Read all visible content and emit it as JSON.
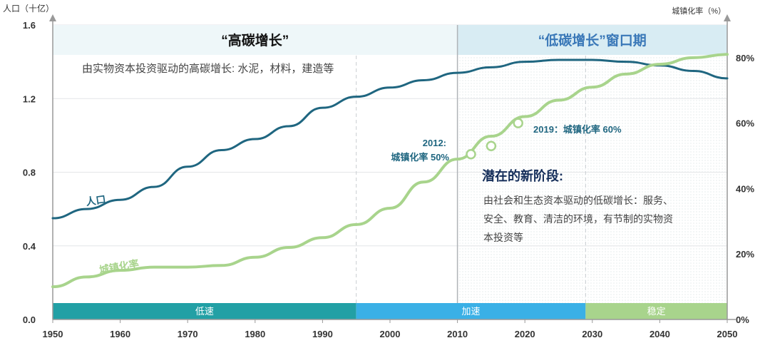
{
  "chart_data": {
    "type": "line",
    "y_left_label": "人口（十亿）",
    "y_right_label": "城镇化率（%）",
    "x_ticks": [
      "1950",
      "1960",
      "1970",
      "1980",
      "1990",
      "2000",
      "2010",
      "2020",
      "2030",
      "2040",
      "2050"
    ],
    "y_left_ticks": [
      {
        "value": 1.6,
        "label": "1.6"
      },
      {
        "value": 1.2,
        "label": "1.2"
      },
      {
        "value": 0.8,
        "label": "0.8"
      },
      {
        "value": 0.4,
        "label": "0.4"
      },
      {
        "value": 0.0,
        "label": "0.0"
      }
    ],
    "y_right_ticks": [
      {
        "value": 80,
        "label": "80%"
      },
      {
        "value": 60,
        "label": "60%"
      },
      {
        "value": 40,
        "label": "40%"
      },
      {
        "value": 20,
        "label": "20%"
      },
      {
        "value": 0,
        "label": "0%"
      }
    ],
    "xlim": [
      1950,
      2050
    ],
    "ylim_left": [
      0,
      1.6
    ],
    "ylim_right": [
      0,
      90
    ],
    "series": [
      {
        "name": "人口",
        "axis": "left",
        "color": "#1f6680",
        "points": [
          [
            1950,
            0.55
          ],
          [
            1955,
            0.6
          ],
          [
            1960,
            0.65
          ],
          [
            1965,
            0.72
          ],
          [
            1970,
            0.83
          ],
          [
            1975,
            0.92
          ],
          [
            1980,
            0.98
          ],
          [
            1985,
            1.05
          ],
          [
            1990,
            1.15
          ],
          [
            1995,
            1.21
          ],
          [
            2000,
            1.26
          ],
          [
            2005,
            1.3
          ],
          [
            2010,
            1.34
          ],
          [
            2015,
            1.37
          ],
          [
            2020,
            1.4
          ],
          [
            2025,
            1.41
          ],
          [
            2030,
            1.41
          ],
          [
            2035,
            1.4
          ],
          [
            2040,
            1.38
          ],
          [
            2045,
            1.35
          ],
          [
            2050,
            1.31
          ]
        ]
      },
      {
        "name": "城镇化率",
        "axis": "right",
        "color": "#a8d48c",
        "points": [
          [
            1950,
            10
          ],
          [
            1955,
            13
          ],
          [
            1960,
            15
          ],
          [
            1965,
            16
          ],
          [
            1970,
            16
          ],
          [
            1975,
            16.5
          ],
          [
            1980,
            19
          ],
          [
            1985,
            22
          ],
          [
            1990,
            25
          ],
          [
            1995,
            29
          ],
          [
            2000,
            34
          ],
          [
            2005,
            42
          ],
          [
            2010,
            49
          ],
          [
            2015,
            56
          ],
          [
            2020,
            62
          ],
          [
            2025,
            67
          ],
          [
            2030,
            71
          ],
          [
            2035,
            75
          ],
          [
            2040,
            78
          ],
          [
            2045,
            80
          ],
          [
            2050,
            81
          ]
        ]
      }
    ],
    "markers": [
      {
        "x": 2012,
        "y": 50.5
      },
      {
        "x": 2015,
        "y": 53
      },
      {
        "x": 2019,
        "y": 60
      }
    ],
    "series_labels": [
      {
        "text": "人口",
        "x": 1955,
        "axis": "left",
        "y": 0.62
      },
      {
        "text": "城镇化率",
        "x": 1957,
        "axis": "right",
        "y": 14
      }
    ],
    "phases": [
      {
        "label": "低速",
        "from": 1950,
        "to": 1995,
        "color": "#22a0a5"
      },
      {
        "label": "加速",
        "from": 1995,
        "to": 2029,
        "color": "#3ab0e6"
      },
      {
        "label": "稳定",
        "from": 2029,
        "to": 2050,
        "color": "#a8d48c"
      }
    ],
    "period_headers": [
      {
        "text": "“高碳增长”",
        "from": 1950,
        "to": 2010,
        "color": "#111111",
        "bg": "#eef7f9"
      },
      {
        "text": "“低碳增长”窗口期",
        "from": 2010,
        "to": 2050,
        "color": "#3a78b8",
        "bg": "#d8ecf3"
      }
    ],
    "vertical_lines": [
      {
        "x": 1995,
        "style": "dashed"
      },
      {
        "x": 2010,
        "style": "solid"
      },
      {
        "x": 2029,
        "style": "dashed"
      }
    ],
    "annotations": {
      "high_carbon_desc": "由实物资本投资驱动的高碳增长: 水泥，材料，建造等",
      "note_2012_line1": "2012:",
      "note_2012_line2": "城镇化率 50%",
      "note_2019": "2019：城镇化率 60%",
      "new_stage_title": "潜在的新阶段:",
      "new_stage_desc_1": "由社会和生态资本驱动的低碳增长：服务、",
      "new_stage_desc_2": "安全、教育、清洁的环境，有节制的实物资",
      "new_stage_desc_3": "本投资等"
    }
  }
}
